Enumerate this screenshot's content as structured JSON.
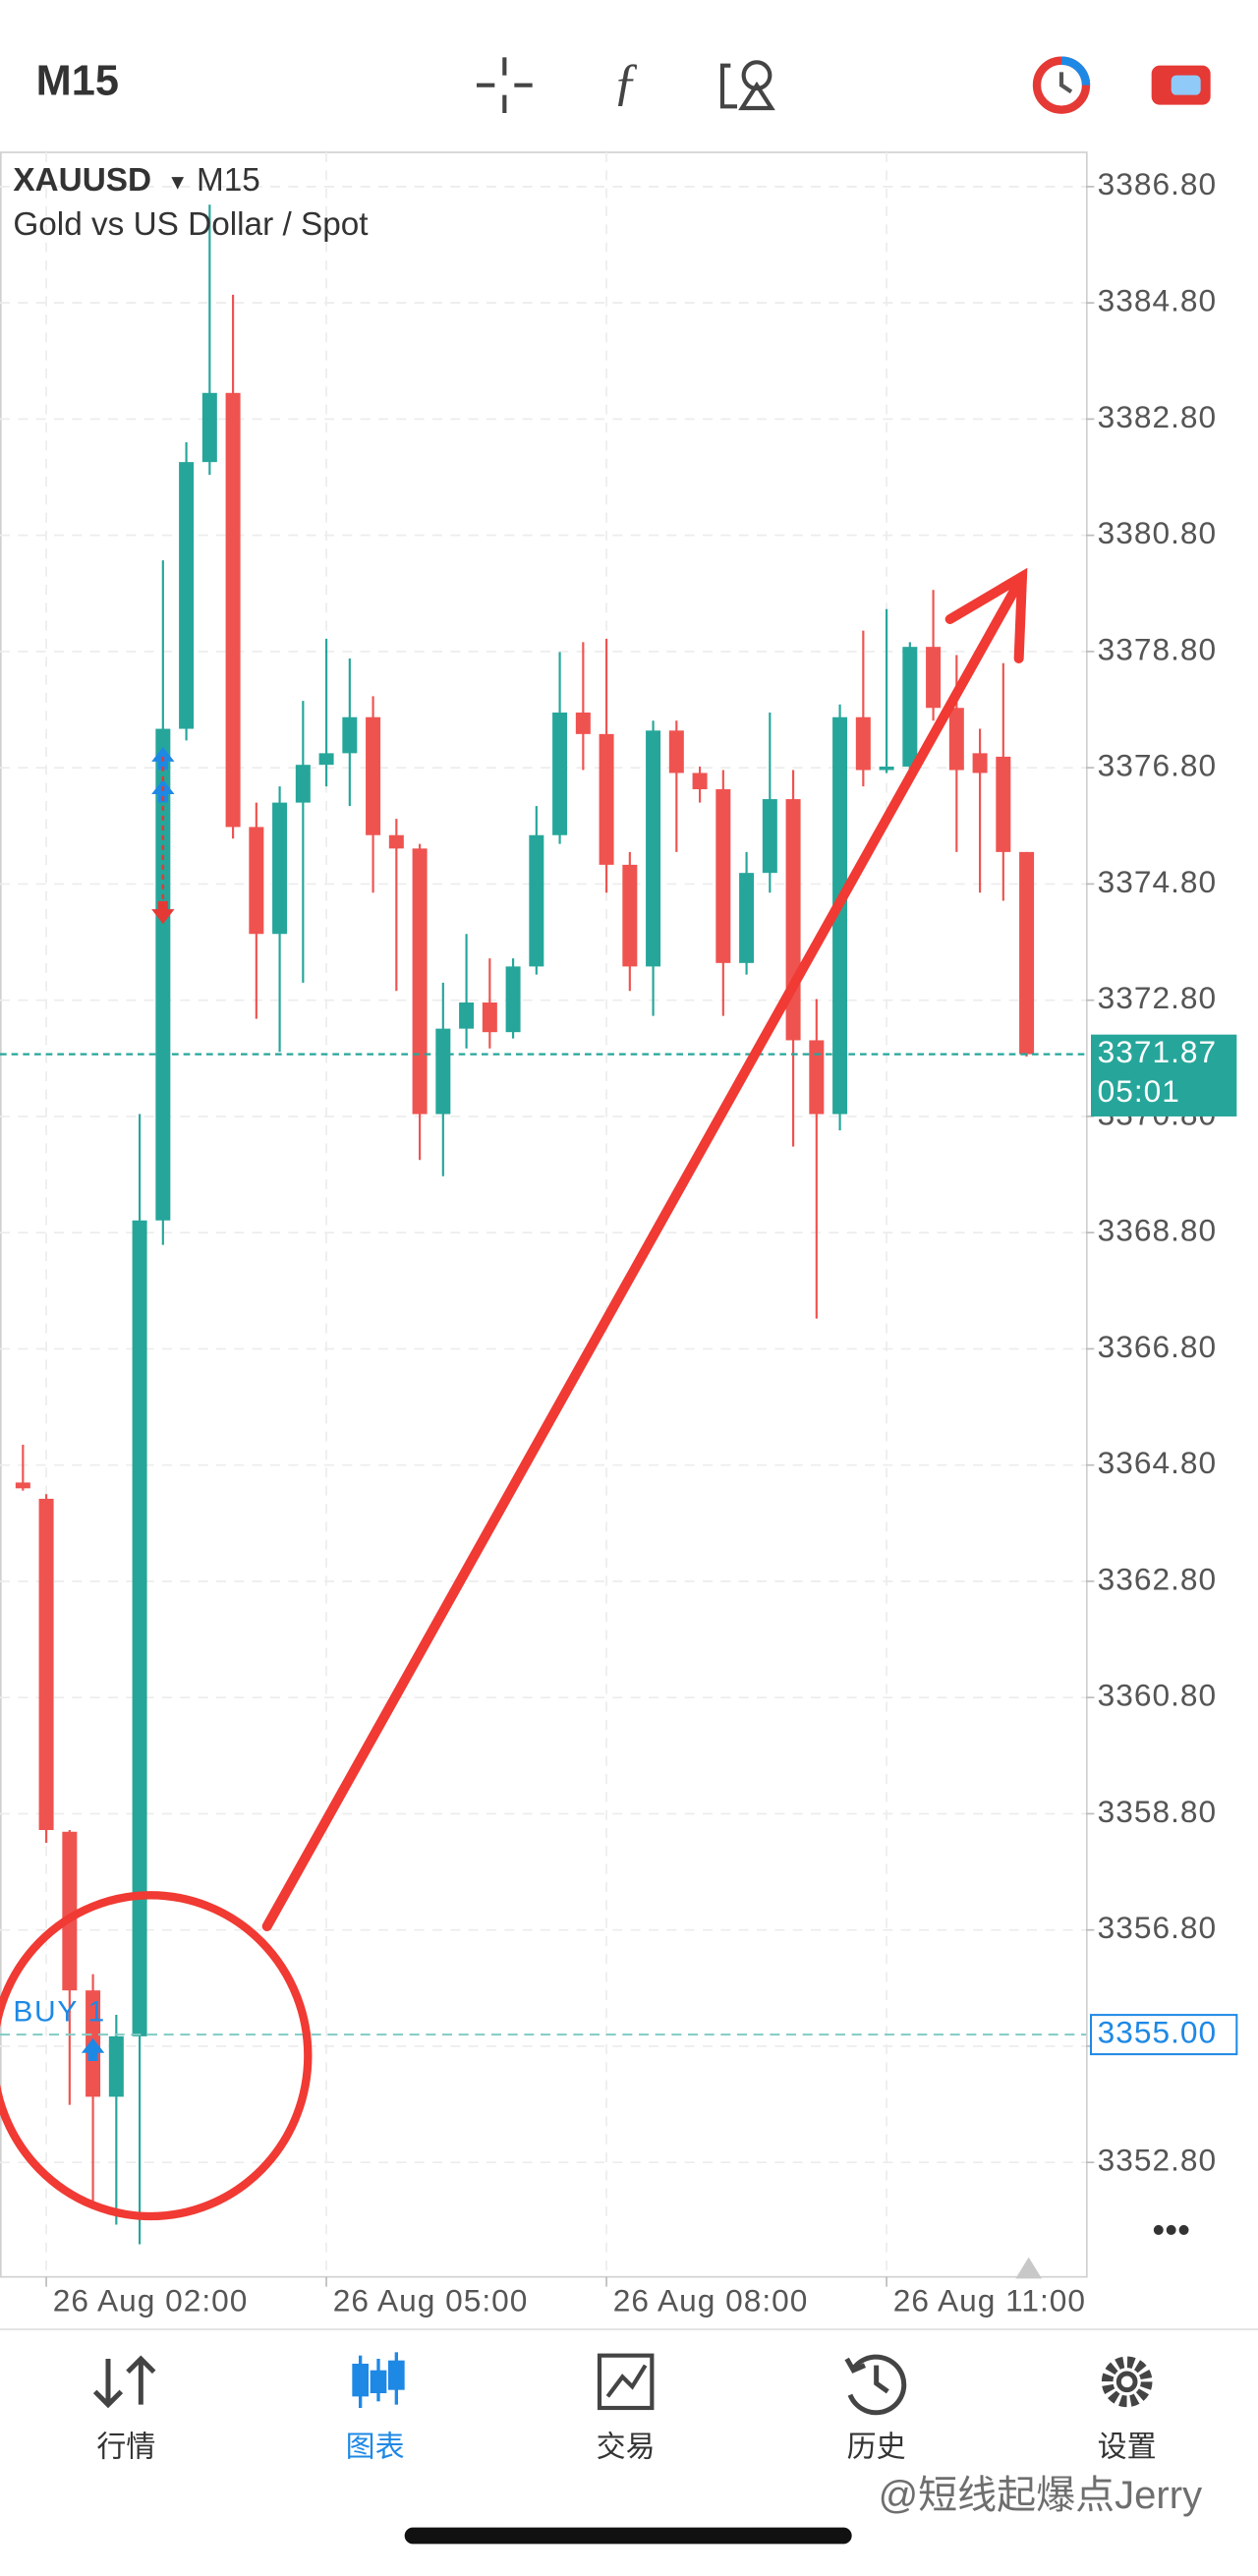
{
  "toolbar": {
    "timeframe": "M15"
  },
  "chart_data": {
    "type": "candlestick",
    "symbol": "XAUUSD",
    "timeframe": "M15",
    "description": "Gold vs US Dollar / Spot",
    "categories": [
      null,
      "26 Aug 02:00",
      null,
      null,
      null,
      null,
      null,
      null,
      null,
      null,
      null,
      null,
      null,
      "26 Aug 05:00",
      null,
      null,
      null,
      null,
      null,
      null,
      null,
      null,
      null,
      null,
      null,
      "26 Aug 08:00",
      null,
      null,
      null,
      null,
      null,
      null,
      null,
      null,
      null,
      null,
      null,
      "26 Aug 11:00",
      null,
      null,
      null,
      null,
      null,
      null
    ],
    "open": [
      3364.5,
      3364.22,
      3358.49,
      3355.76,
      3353.93,
      3354.97,
      3369.01,
      3377.47,
      3382.06,
      3383.25,
      3375.78,
      3373.94,
      3376.2,
      3376.85,
      3377.05,
      3377.67,
      3375.64,
      3375.41,
      3370.84,
      3372.31,
      3372.76,
      3372.25,
      3373.38,
      3375.64,
      3377.75,
      3377.38,
      3375.13,
      3373.38,
      3377.44,
      3376.71,
      3376.43,
      3373.44,
      3374.99,
      3376.26,
      3372.11,
      3370.84,
      3377.67,
      3376.76,
      3376.82,
      3378.88,
      3377.83,
      3377.05,
      3376.99,
      3375.35
    ],
    "high": [
      3365.15,
      3364.3,
      3358.52,
      3356.04,
      3355.34,
      3370.84,
      3380.37,
      3382.4,
      3386.49,
      3384.94,
      3376.2,
      3376.48,
      3377.95,
      3379.02,
      3378.68,
      3378.03,
      3375.92,
      3375.49,
      3373.1,
      3373.94,
      3373.52,
      3373.52,
      3376.14,
      3378.79,
      3378.96,
      3379.02,
      3375.35,
      3377.61,
      3377.61,
      3376.82,
      3376.76,
      3375.35,
      3377.75,
      3376.76,
      3372.82,
      3377.89,
      3379.16,
      3379.53,
      3378.96,
      3379.86,
      3378.74,
      3377.47,
      3378.6,
      3375.35
    ],
    "low": [
      3364.36,
      3358.3,
      3353.79,
      3352.09,
      3351.73,
      3351.39,
      3368.59,
      3377.27,
      3381.84,
      3375.58,
      3372.48,
      3371.91,
      3373.1,
      3376.48,
      3376.14,
      3374.65,
      3372.96,
      3370.05,
      3369.77,
      3371.97,
      3371.97,
      3372.14,
      3373.24,
      3375.49,
      3376.76,
      3374.65,
      3372.96,
      3372.53,
      3375.35,
      3376.2,
      3372.53,
      3373.24,
      3374.65,
      3370.28,
      3367.32,
      3370.56,
      3376.48,
      3376.71,
      3376.76,
      3377.61,
      3375.35,
      3374.65,
      3374.51,
      3371.83
    ],
    "close": [
      3364.4,
      3358.52,
      3355.76,
      3353.93,
      3354.97,
      3369.01,
      3377.47,
      3382.06,
      3383.25,
      3375.78,
      3373.94,
      3376.2,
      3376.85,
      3377.05,
      3377.67,
      3375.64,
      3375.41,
      3370.84,
      3372.31,
      3372.76,
      3372.25,
      3373.38,
      3375.64,
      3377.75,
      3377.38,
      3375.13,
      3373.38,
      3377.44,
      3376.71,
      3376.43,
      3373.44,
      3374.99,
      3376.26,
      3372.11,
      3370.84,
      3377.67,
      3376.76,
      3376.82,
      3378.88,
      3377.83,
      3376.76,
      3376.71,
      3375.35,
      3371.87
    ],
    "up_color": "#26a69a",
    "down_color": "#ef5350",
    "ylim": [
      3350.83,
      3387.39
    ],
    "yticks": [
      {
        "value": 3352.8,
        "label": "3352.80"
      },
      {
        "value": 3354.8,
        "label": "3354.80"
      },
      {
        "value": 3356.8,
        "label": "3356.80"
      },
      {
        "value": 3358.8,
        "label": "3358.80"
      },
      {
        "value": 3360.8,
        "label": "3360.80"
      },
      {
        "value": 3362.8,
        "label": "3362.80"
      },
      {
        "value": 3364.8,
        "label": "3364.80"
      },
      {
        "value": 3366.8,
        "label": "3366.80"
      },
      {
        "value": 3368.8,
        "label": "3368.80"
      },
      {
        "value": 3370.8,
        "label": "3370.80"
      },
      {
        "value": 3372.8,
        "label": "3372.80"
      },
      {
        "value": 3374.8,
        "label": "3374.80"
      },
      {
        "value": 3376.8,
        "label": "3376.80"
      },
      {
        "value": 3378.8,
        "label": "3378.80"
      },
      {
        "value": 3380.8,
        "label": "3380.80"
      },
      {
        "value": 3382.8,
        "label": "3382.80"
      },
      {
        "value": 3384.8,
        "label": "3384.80"
      },
      {
        "value": 3386.8,
        "label": "3386.80"
      }
    ],
    "grid": true,
    "current_price": {
      "value": 3371.87,
      "countdown": "05:01",
      "color": "#26a69a"
    },
    "order_line": {
      "value": 3355,
      "label": "3355.00",
      "name": "BUY 1",
      "color": "#1e88e5"
    },
    "markers": [
      {
        "index": 3,
        "price": 3354.77,
        "color": "#1e88e5",
        "direction": "up"
      },
      {
        "index": 6,
        "price": 3376.99,
        "color": "#1e88e5",
        "direction": "up"
      },
      {
        "index": 6,
        "price": 3376.43,
        "color": "#1e88e5",
        "direction": "up"
      },
      {
        "index": 6,
        "price": 3374.28,
        "color": "#e53935",
        "direction": "down"
      }
    ]
  },
  "tabs": [
    {
      "label": "行情"
    },
    {
      "label": "图表"
    },
    {
      "label": "交易"
    },
    {
      "label": "历史"
    },
    {
      "label": "设置"
    }
  ],
  "active_tab": 1,
  "watermark": "@短线起爆点Jerry"
}
